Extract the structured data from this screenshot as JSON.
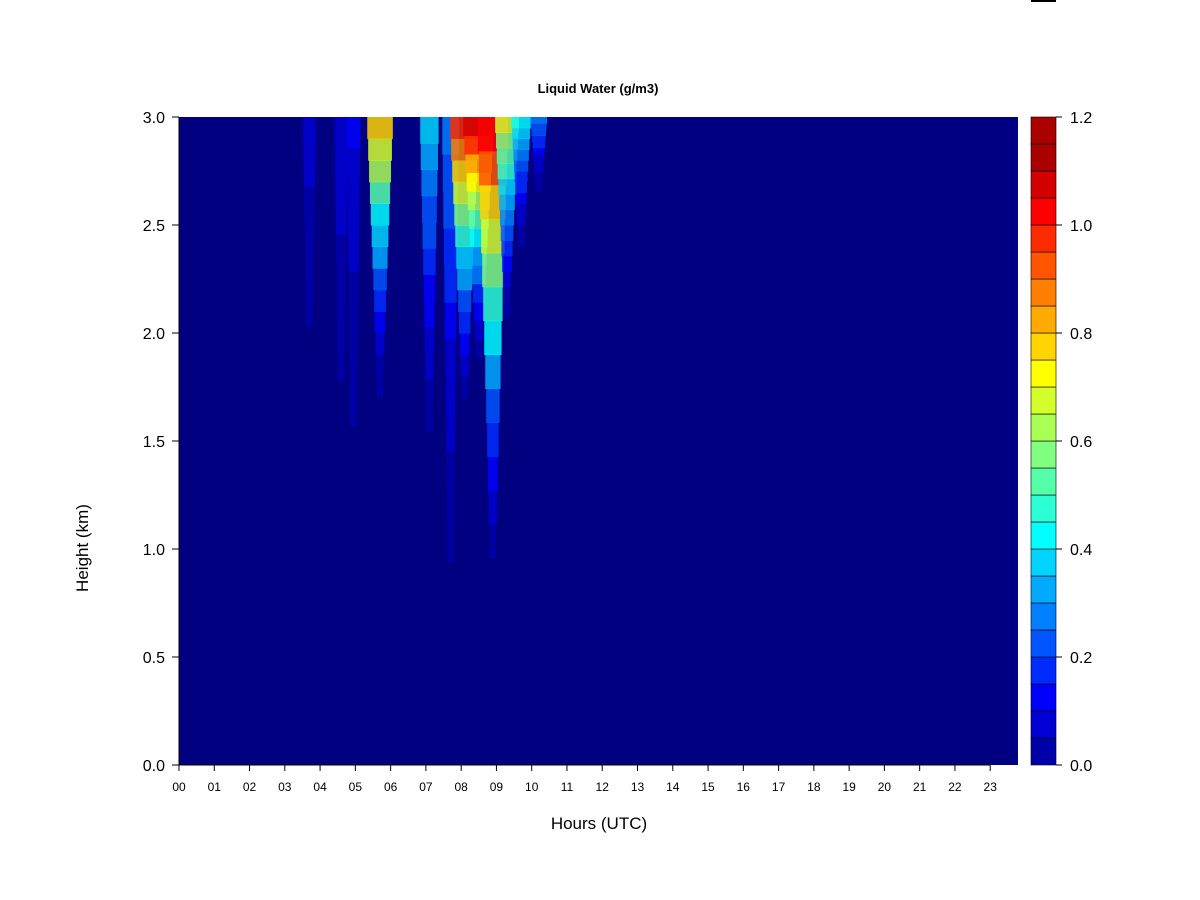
{
  "chart_data": {
    "type": "heatmap",
    "title": "Liquid Water (g/m3)",
    "xlabel": "Hours (UTC)",
    "ylabel": "Height (km)",
    "x_ticks": [
      "00",
      "01",
      "02",
      "03",
      "04",
      "05",
      "06",
      "07",
      "08",
      "09",
      "10",
      "11",
      "12",
      "13",
      "14",
      "15",
      "16",
      "17",
      "18",
      "19",
      "20",
      "21",
      "22",
      "23"
    ],
    "x_range_hours": [
      0,
      23.9
    ],
    "y_ticks": [
      "0.0",
      "0.5",
      "1.0",
      "1.5",
      "2.0",
      "2.5",
      "3.0"
    ],
    "y_range_km": [
      0,
      3.0
    ],
    "colorbar": {
      "ticks": [
        "0.0",
        "0.2",
        "0.4",
        "0.6",
        "0.8",
        "1.0",
        "1.2"
      ],
      "range": [
        0,
        1.2
      ],
      "levels": 24,
      "colors": [
        "#000080",
        "#0000AA",
        "#0000D4",
        "#0000FF",
        "#002BFF",
        "#0055FF",
        "#0080FF",
        "#00AAFF",
        "#00D4FF",
        "#00FFFF",
        "#2BFFD4",
        "#55FFAA",
        "#80FF80",
        "#AAFF55",
        "#D4FF2B",
        "#FFFF00",
        "#FFD400",
        "#FFAA00",
        "#FF8000",
        "#FF5500",
        "#FF2B00",
        "#FF0000",
        "#D40000",
        "#AA0000",
        "#800000"
      ]
    },
    "background_value": 0.0,
    "features": [
      {
        "hour": 3.7,
        "base_km": 1.5,
        "top_km": 3.0,
        "peak": 0.1
      },
      {
        "hour": 4.6,
        "base_km": 1.1,
        "top_km": 3.0,
        "peak": 0.12
      },
      {
        "hour": 4.95,
        "base_km": 1.0,
        "top_km": 3.0,
        "peak": 0.14
      },
      {
        "hour": 5.7,
        "base_km": 1.6,
        "top_km": 3.0,
        "peak": 0.8
      },
      {
        "hour": 7.1,
        "base_km": 1.3,
        "top_km": 3.0,
        "peak": 0.4
      },
      {
        "hour": 7.7,
        "base_km": 0.6,
        "top_km": 3.0,
        "peak": 0.3
      },
      {
        "hour": 8.1,
        "base_km": 1.6,
        "top_km": 3.0,
        "peak": 1.0
      },
      {
        "hour": 8.5,
        "base_km": 1.8,
        "top_km": 3.0,
        "peak": 1.1
      },
      {
        "hour": 8.9,
        "base_km": 0.8,
        "top_km": 3.0,
        "peak": 1.05
      },
      {
        "hour": 9.3,
        "base_km": 2.0,
        "top_km": 3.0,
        "peak": 0.7
      },
      {
        "hour": 9.7,
        "base_km": 2.3,
        "top_km": 3.0,
        "peak": 0.45
      },
      {
        "hour": 10.2,
        "base_km": 2.6,
        "top_km": 3.0,
        "peak": 0.3
      }
    ]
  }
}
